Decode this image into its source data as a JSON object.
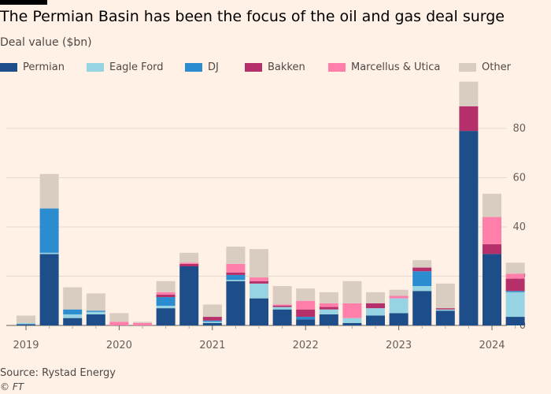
{
  "title": "The Permian Basin has been the focus of the oil and gas deal surge",
  "subtitle": "Deal value ($bn)",
  "source": "Source: Rystad Energy",
  "credit": "© FT",
  "chart_data": {
    "type": "bar",
    "stacked": true,
    "categories": [
      "2019 Q1",
      "2019 Q2",
      "2019 Q3",
      "2019 Q4",
      "2020 Q1",
      "2020 Q2",
      "2020 Q3",
      "2020 Q4",
      "2021 Q1",
      "2021 Q2",
      "2021 Q3",
      "2021 Q4",
      "2022 Q1",
      "2022 Q2",
      "2022 Q3",
      "2022 Q4",
      "2023 Q1",
      "2023 Q2",
      "2023 Q3",
      "2023 Q4",
      "2024 Q1",
      "2024 Q2"
    ],
    "x_tick_labels": [
      "2019",
      "2020",
      "2021",
      "2022",
      "2023",
      "2024"
    ],
    "ylim": [
      0,
      98
    ],
    "y_ticks": [
      0,
      20,
      40,
      60,
      80
    ],
    "grid": true,
    "legend_position": "top",
    "series": [
      {
        "name": "Permian",
        "color": "#1d4e89",
        "values": [
          0.5,
          29,
          3,
          4.5,
          0,
          0,
          7,
          24,
          1,
          18,
          11,
          6.5,
          2.5,
          4.5,
          1,
          4,
          5,
          14,
          6,
          79,
          29,
          3.5
        ]
      },
      {
        "name": "Eagle Ford",
        "color": "#96d3e3",
        "values": [
          0.5,
          0.5,
          1.5,
          1,
          0,
          0,
          1,
          0,
          0.5,
          0.5,
          6,
          1,
          0,
          2,
          2,
          3,
          6,
          2,
          0.5,
          0,
          0,
          10
        ]
      },
      {
        "name": "DJ",
        "color": "#2b8ccf",
        "values": [
          0,
          18,
          2,
          0.5,
          0,
          0,
          3.5,
          0,
          0.5,
          2,
          0,
          0,
          1,
          0,
          0,
          0,
          0,
          6,
          0,
          0,
          0,
          0.5
        ]
      },
      {
        "name": "Bakken",
        "color": "#b5306a",
        "values": [
          0,
          0,
          0,
          0,
          0,
          0,
          1,
          1,
          1.5,
          1,
          1,
          0.5,
          3,
          1,
          0,
          2,
          0,
          1.5,
          0.5,
          10,
          4,
          5
        ]
      },
      {
        "name": "Marcellus & Utica",
        "color": "#ff7faa",
        "values": [
          0,
          0,
          0,
          0,
          1.5,
          1,
          1,
          0.5,
          0,
          3.5,
          1.5,
          0.5,
          3.5,
          1.5,
          6,
          0,
          1,
          0,
          0,
          0,
          11,
          2
        ]
      },
      {
        "name": "Other",
        "color": "#d9ccc1",
        "values": [
          3,
          14,
          9,
          7,
          3.5,
          0.5,
          4.5,
          4,
          5,
          7,
          11.5,
          7.5,
          5,
          4.5,
          9,
          4.5,
          2.5,
          3,
          10,
          10,
          9.5,
          4.5
        ]
      }
    ]
  }
}
